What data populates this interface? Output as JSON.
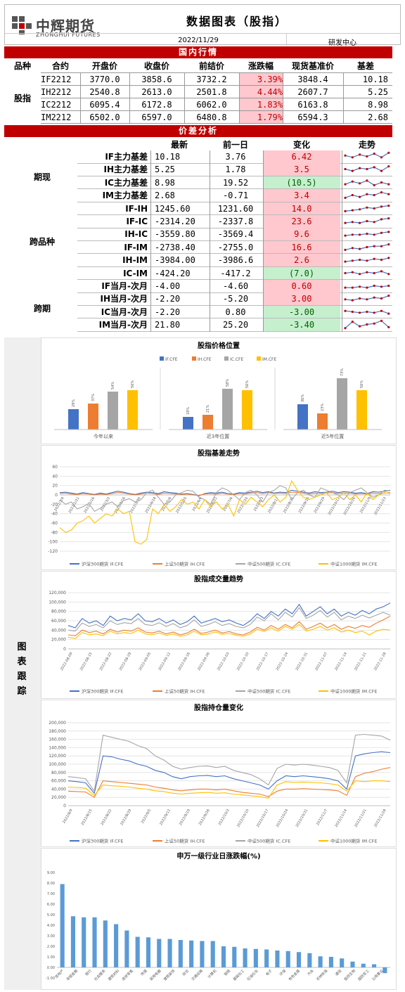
{
  "header": {
    "logo_text": "中辉期货",
    "logo_sub": "ZHONGHUI FUTURES",
    "title": "数据图表（股指）",
    "date": "2022/11/29",
    "center": "研发中心"
  },
  "domestic": {
    "section_title": "国内行情",
    "headers": [
      "品种",
      "合约",
      "开盘价",
      "收盘价",
      "前结价",
      "涨跌幅",
      "现货基准价",
      "基差"
    ],
    "category": "股指",
    "rows": [
      {
        "contract": "IF2212",
        "open": "3770.0",
        "close": "3858.6",
        "prev": "3732.2",
        "chg": "3.39%",
        "spot": "3848.4",
        "basis": "10.18"
      },
      {
        "contract": "IH2212",
        "open": "2540.8",
        "close": "2613.0",
        "prev": "2501.8",
        "chg": "4.44%",
        "spot": "2607.7",
        "basis": "5.25"
      },
      {
        "contract": "IC2212",
        "open": "6095.4",
        "close": "6172.8",
        "prev": "6062.0",
        "chg": "1.83%",
        "spot": "6163.8",
        "basis": "8.98"
      },
      {
        "contract": "IM2212",
        "open": "6502.0",
        "close": "6597.0",
        "prev": "6480.8",
        "chg": "1.79%",
        "spot": "6594.3",
        "basis": "2.68"
      }
    ]
  },
  "spread": {
    "section_title": "价差分析",
    "headers": [
      "最新",
      "前一日",
      "变化",
      "走势"
    ],
    "groups": [
      "期现",
      "跨品种",
      "跨期"
    ],
    "rows": [
      {
        "name": "IF主力基差",
        "latest": "10.18",
        "prev": "3.76",
        "change": "6.42",
        "color": "pink"
      },
      {
        "name": "IH主力基差",
        "latest": "5.25",
        "prev": "1.78",
        "change": "3.5",
        "color": "pink"
      },
      {
        "name": "IC主力基差",
        "latest": "8.98",
        "prev": "19.52",
        "change": "(10.5)",
        "color": "green"
      },
      {
        "name": "IM主力基差",
        "latest": "2.68",
        "prev": "-0.71",
        "change": "3.4",
        "color": "pink"
      },
      {
        "name": "IF-IH",
        "latest": "1245.60",
        "prev": "1231.60",
        "change": "14.0",
        "color": "pink"
      },
      {
        "name": "IF-IC",
        "latest": "-2314.20",
        "prev": "-2337.8",
        "change": "23.6",
        "color": "pink"
      },
      {
        "name": "IH-IC",
        "latest": "-3559.80",
        "prev": "-3569.4",
        "change": "9.6",
        "color": "pink"
      },
      {
        "name": "IF-IM",
        "latest": "-2738.40",
        "prev": "-2755.0",
        "change": "16.6",
        "color": "pink"
      },
      {
        "name": "IH-IM",
        "latest": "-3984.00",
        "prev": "-3986.6",
        "change": "2.6",
        "color": "pink"
      },
      {
        "name": "IC-IM",
        "latest": "-424.20",
        "prev": "-417.2",
        "change": "(7.0)",
        "color": "green"
      },
      {
        "name": "IF当月-次月",
        "latest": "-4.00",
        "prev": "-4.60",
        "change": "0.60",
        "color": "pink"
      },
      {
        "name": "IH当月-次月",
        "latest": "-2.20",
        "prev": "-5.20",
        "change": "3.00",
        "color": "pink"
      },
      {
        "name": "IC当月-次月",
        "latest": "-2.20",
        "prev": "0.80",
        "change": "-3.00",
        "color": "green"
      },
      {
        "name": "IM当月-次月",
        "latest": "21.80",
        "prev": "25.20",
        "change": "-3.40",
        "color": "green"
      }
    ]
  },
  "track_label": [
    "图",
    "表",
    "跟",
    "踪"
  ],
  "colors": {
    "IF": "#4472c4",
    "IH": "#ed7d31",
    "IC": "#a5a5a5",
    "IM": "#ffc000",
    "bar": "#5b9bd5",
    "red": "#c00000"
  },
  "chart_data": [
    {
      "type": "bar",
      "title": "股指价格位置",
      "legend": [
        "IF.CFE",
        "IH.CFE",
        "IC.CFE",
        "IM.CFE"
      ],
      "legend_position": "top",
      "groups": [
        {
          "label": "今年以来",
          "values": [
            29,
            37,
            54,
            56
          ],
          "labels": [
            "29%",
            "37%",
            "54%",
            "56%"
          ]
        },
        {
          "label": "近3年位置",
          "values": [
            18,
            21,
            58,
            56
          ],
          "labels": [
            "18%",
            "21%",
            "58%",
            "56%"
          ]
        },
        {
          "label": "近5年位置",
          "values": [
            36,
            23,
            73,
            56
          ],
          "labels": [
            "36%",
            "23%",
            "73%",
            "56%"
          ]
        }
      ]
    },
    {
      "type": "line",
      "title": "股指基差走势",
      "ylim": [
        -120,
        60
      ],
      "yticks": [
        "60",
        "40",
        "20",
        "0",
        "-20",
        "-40",
        "-60",
        "-80",
        "-100",
        "-120"
      ],
      "xticks": [
        "2022/1/4",
        "2022/1/21",
        "2022/2/16",
        "2022/3/2",
        "2022/3/16",
        "2022/3/30",
        "2022/4/18",
        "2022/5/6",
        "2022/5/20",
        "2022/6/6",
        "2022/6/21",
        "2022/7/6",
        "2022/7/20",
        "2022/8/3",
        "2022/8/17",
        "2022/8/31",
        "2022/9/15",
        "2022/9/29",
        "2022/10/12",
        "2022/10/26",
        "2022/11/9",
        "2022/11/23"
      ],
      "series": [
        {
          "name": "沪深300期货 IF.CFE",
          "values": [
            5,
            6,
            4,
            2,
            5,
            3,
            1,
            4,
            2,
            5,
            8,
            6,
            3,
            1,
            4,
            6,
            5,
            3,
            7,
            5,
            4,
            2,
            3,
            1,
            -2,
            3,
            5,
            4,
            6,
            3,
            2,
            5,
            4,
            6,
            8,
            5,
            7,
            4,
            6,
            5,
            10,
            8,
            6,
            4,
            7,
            5,
            6,
            8,
            5,
            7,
            6,
            4,
            5,
            3,
            7,
            6,
            8,
            10
          ]
        },
        {
          "name": "上证50期货 IH.CFE",
          "values": [
            3,
            4,
            2,
            1,
            3,
            2,
            0,
            2,
            1,
            3,
            5,
            4,
            2,
            0,
            2,
            4,
            3,
            1,
            4,
            3,
            2,
            1,
            2,
            0,
            -1,
            2,
            3,
            2,
            4,
            2,
            1,
            3,
            2,
            4,
            5,
            3,
            5,
            3,
            4,
            3,
            6,
            5,
            4,
            2,
            4,
            3,
            4,
            5,
            3,
            4,
            4,
            2,
            3,
            2,
            4,
            3,
            4,
            5
          ]
        },
        {
          "name": "中证500期货 IC.CFE",
          "values": [
            -10,
            -20,
            -15,
            -30,
            -25,
            -18,
            -35,
            -28,
            -20,
            -15,
            -25,
            -12,
            -8,
            -15,
            -10,
            5,
            10,
            -5,
            -20,
            -15,
            0,
            5,
            10,
            8,
            -5,
            -10,
            -20,
            5,
            15,
            10,
            0,
            -10,
            5,
            10,
            0,
            -15,
            5,
            10,
            20,
            15,
            -10,
            5,
            10,
            0,
            -5,
            15,
            10,
            5,
            0,
            -10,
            5,
            10,
            15,
            5,
            -5,
            0,
            10,
            9
          ]
        },
        {
          "name": "中证1000期货 IM.CFE",
          "values": [
            -70,
            -80,
            -75,
            -60,
            -55,
            -45,
            -60,
            -50,
            -40,
            -45,
            -30,
            -40,
            -35,
            -100,
            -105,
            -95,
            -30,
            -40,
            -20,
            -35,
            -25,
            -10,
            -20,
            -15,
            -30,
            -10,
            -25,
            -15,
            -30,
            -20,
            -45,
            -10,
            -20,
            -5,
            -15,
            -25,
            -10,
            0,
            -15,
            -5,
            30,
            10,
            -5,
            -10,
            -5,
            0,
            5,
            -10,
            -5,
            5,
            -10,
            0,
            -15,
            5,
            -10,
            0,
            5,
            3
          ]
        }
      ]
    },
    {
      "type": "line",
      "title": "股指成交量趋势",
      "ylim": [
        0,
        120000
      ],
      "yticks": [
        "120,000",
        "100,000",
        "80,000",
        "60,000",
        "40,000",
        "20,000",
        "0"
      ],
      "xticks": [
        "2022-08-09",
        "2022-08-15",
        "2022-08-22",
        "2022-08-29",
        "2022-09-05",
        "2022-09-12",
        "2022-09-16",
        "2022-09-26",
        "2022-10-03",
        "2022-10-10",
        "2022-10-17",
        "2022-10-24",
        "2022-10-31",
        "2022-11-07",
        "2022-11-14",
        "2022-11-21",
        "2022-11-28"
      ],
      "series": [
        {
          "name": "沪深300期货 IF.CFE",
          "values": [
            50000,
            45000,
            65000,
            55000,
            60000,
            50000,
            70000,
            60000,
            65000,
            62000,
            75000,
            60000,
            58000,
            65000,
            55000,
            62000,
            52000,
            58000,
            70000,
            55000,
            60000,
            65000,
            58000,
            62000,
            55000,
            50000,
            60000,
            75000,
            65000,
            80000,
            70000,
            85000,
            75000,
            95000,
            70000,
            80000,
            90000,
            75000,
            85000,
            70000,
            78000,
            72000,
            82000,
            75000,
            85000,
            90000,
            98000
          ]
        },
        {
          "name": "上证50期货 IH.CFE",
          "values": [
            30000,
            28000,
            40000,
            35000,
            38000,
            32000,
            42000,
            36000,
            40000,
            38000,
            45000,
            36000,
            34000,
            38000,
            32000,
            36000,
            30000,
            34000,
            42000,
            33000,
            36000,
            40000,
            34000,
            37000,
            32000,
            30000,
            36000,
            46000,
            40000,
            50000,
            42000,
            52000,
            45000,
            58000,
            42000,
            48000,
            55000,
            45000,
            52000,
            42000,
            48000,
            44000,
            50000,
            46000,
            55000,
            62000,
            70000
          ]
        },
        {
          "name": "中证500期货 IC.CFE",
          "values": [
            40000,
            38000,
            55000,
            48000,
            52000,
            45000,
            60000,
            52000,
            56000,
            54000,
            65000,
            52000,
            50000,
            56000,
            48000,
            54000,
            45000,
            50000,
            62000,
            48000,
            52000,
            58000,
            50000,
            54000,
            48000,
            45000,
            52000,
            68000,
            60000,
            75000,
            62000,
            78000,
            68000,
            88000,
            65000,
            72000,
            82000,
            68000,
            78000,
            62000,
            70000,
            65000,
            72000,
            66000,
            72000,
            78000,
            72000
          ]
        },
        {
          "name": "中证1000期货 IM.CFE",
          "values": [
            25000,
            22000,
            35000,
            30000,
            32000,
            28000,
            38000,
            32000,
            35000,
            33000,
            40000,
            32000,
            30000,
            34000,
            29000,
            32000,
            27000,
            30000,
            38000,
            30000,
            32000,
            36000,
            31000,
            33000,
            29000,
            27000,
            32000,
            42000,
            37000,
            45000,
            38000,
            48000,
            42000,
            52000,
            38000,
            42000,
            48000,
            40000,
            45000,
            36000,
            40000,
            35000,
            38000,
            30000,
            38000,
            42000,
            40000
          ]
        }
      ]
    },
    {
      "type": "line",
      "title": "股指持仓量变化",
      "ylim": [
        0,
        200000
      ],
      "yticks": [
        "200,000",
        "180,000",
        "160,000",
        "140,000",
        "120,000",
        "100,000",
        "80,000",
        "60,000",
        "40,000",
        "20,000",
        "0"
      ],
      "xticks": [
        "2022/8/9",
        "2022/8/15",
        "2022/8/22",
        "2022/8/29",
        "2022/9/5",
        "2022/9/12",
        "2022/9/19",
        "2022/9/26",
        "2022/10/3",
        "2022/10/10",
        "2022/10/17",
        "2022/10/24",
        "2022/10/31",
        "2022/11/7",
        "2022/11/14",
        "2022/11/21",
        "2022/11/28"
      ],
      "series": [
        {
          "name": "沪深300期货 IF.CFE",
          "values": [
            60000,
            58000,
            55000,
            30000,
            120000,
            118000,
            112000,
            108000,
            100000,
            95000,
            85000,
            80000,
            70000,
            65000,
            70000,
            72000,
            73000,
            70000,
            72000,
            65000,
            60000,
            55000,
            50000,
            40000,
            60000,
            72000,
            70000,
            72000,
            70000,
            68000,
            65000,
            60000,
            40000,
            120000,
            125000,
            128000,
            130000,
            128000
          ]
        },
        {
          "name": "上证50期货 IH.CFE",
          "values": [
            35000,
            34000,
            33000,
            20000,
            60000,
            58000,
            56000,
            54000,
            52000,
            50000,
            45000,
            42000,
            38000,
            36000,
            38000,
            40000,
            40000,
            38000,
            40000,
            36000,
            32000,
            30000,
            28000,
            22000,
            35000,
            40000,
            40000,
            41000,
            40000,
            39000,
            38000,
            36000,
            25000,
            70000,
            78000,
            82000,
            88000,
            92000
          ]
        },
        {
          "name": "中证500期货 IC.CFE",
          "values": [
            70000,
            68000,
            65000,
            35000,
            170000,
            165000,
            160000,
            155000,
            145000,
            138000,
            120000,
            110000,
            95000,
            88000,
            92000,
            95000,
            96000,
            92000,
            95000,
            85000,
            80000,
            75000,
            65000,
            50000,
            90000,
            100000,
            98000,
            100000,
            98000,
            95000,
            92000,
            85000,
            55000,
            170000,
            172000,
            170000,
            168000,
            158000
          ]
        },
        {
          "name": "中证1000期货 IM.CFE",
          "values": [
            45000,
            44000,
            42000,
            25000,
            50000,
            48000,
            47000,
            45000,
            42000,
            40000,
            36000,
            34000,
            30000,
            28000,
            30000,
            31000,
            32000,
            30000,
            31000,
            28000,
            26000,
            24000,
            22000,
            18000,
            50000,
            58000,
            56000,
            57000,
            56000,
            55000,
            53000,
            50000,
            35000,
            60000,
            58000,
            60000,
            60000,
            58000
          ]
        }
      ]
    },
    {
      "type": "bar",
      "title": "申万一级行业日涨跌幅(%)",
      "ylim": [
        -1,
        9
      ],
      "yticks": [
        "9.00",
        "8.00",
        "7.00",
        "6.00",
        "5.00",
        "4.00",
        "3.00",
        "2.00",
        "1.00",
        "0.00",
        "-1.00"
      ],
      "categories": [
        "房地产",
        "非银金融",
        "银行",
        "社会服务",
        "建筑材料",
        "建筑装饰",
        "商贸零售",
        "传媒",
        "食品饮料",
        "美容护理",
        "家用电器",
        "综合",
        "交通运输",
        "计算机",
        "钢铁",
        "基础化工",
        "石油石化",
        "电子",
        "环保",
        "有色金属",
        "汽车",
        "煤炭",
        "通信",
        "医药生物",
        "国防军工",
        "机械设备",
        "农林牧渔",
        "电力设备",
        "纺织服饰",
        "轻工制造",
        "公用事业"
      ],
      "categories_shown": [
        "房地产",
        "非银金融",
        "银行",
        "社会服务",
        "建筑材料",
        "商贸零售",
        "传媒",
        "家用电器",
        "建筑装饰",
        "综合",
        "交通运输",
        "计算机",
        "钢铁",
        "基础化工",
        "石油石化",
        "电子",
        "环保",
        "有色金属",
        "汽车",
        "农林牧渔",
        "通信",
        "医药生物",
        "国防军工",
        "公用事业"
      ],
      "values": [
        7.9,
        4.85,
        4.75,
        4.75,
        4.45,
        4.1,
        3.5,
        2.9,
        2.85,
        2.7,
        2.7,
        2.6,
        2.55,
        2.5,
        2.5,
        2.0,
        1.95,
        1.8,
        1.75,
        1.7,
        1.6,
        1.55,
        1.45,
        1.35,
        1.05,
        1.0,
        0.85,
        0.55,
        0.35,
        0.3,
        -0.55
      ]
    }
  ]
}
